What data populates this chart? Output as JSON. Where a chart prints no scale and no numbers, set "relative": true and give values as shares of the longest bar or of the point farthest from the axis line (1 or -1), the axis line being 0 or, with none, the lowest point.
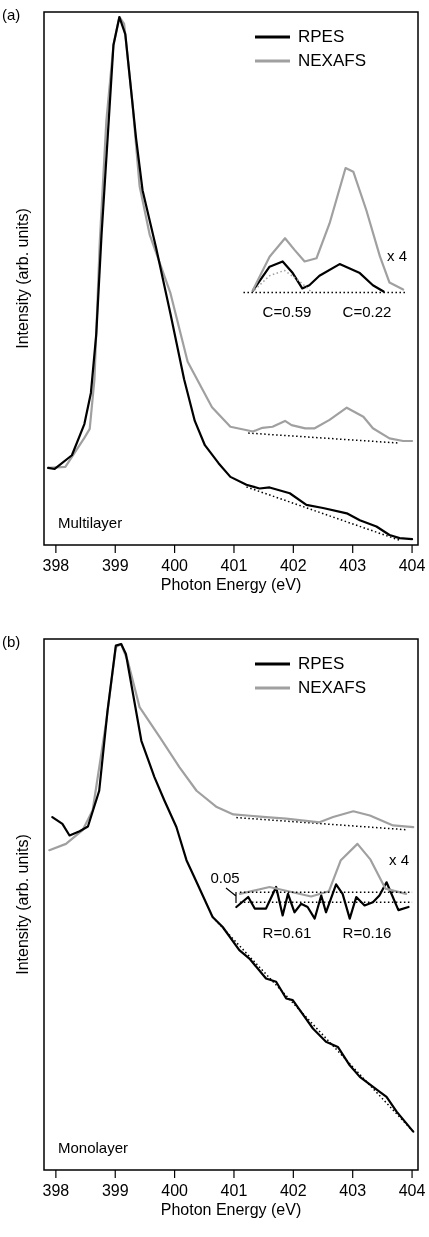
{
  "chart_data": [
    {
      "type": "line",
      "title": "(a)",
      "xlabel": "Photon Energy (eV)",
      "ylabel": "Intensity (arb. units)",
      "relative": true,
      "xlim": [
        397.8,
        404.1
      ],
      "xticks": [
        398,
        399,
        400,
        401,
        402,
        403,
        404
      ],
      "legend": "top right",
      "annotations": [
        "Multilayer",
        "x 4",
        "C=0.59",
        "C=0.22"
      ],
      "series": [
        {
          "name": "RPES",
          "color": "#000000",
          "x": [
            397.87,
            397.98,
            398.27,
            398.48,
            398.59,
            398.68,
            398.77,
            398.89,
            398.97,
            399.07,
            399.17,
            399.35,
            399.46,
            399.69,
            399.93,
            400.16,
            400.34,
            400.51,
            400.74,
            400.94,
            401.21,
            401.43,
            401.6,
            401.94,
            402.22,
            402.5,
            402.9,
            403.12,
            403.4,
            403.62,
            403.79,
            404.0
          ],
          "values": [
            0.146,
            0.144,
            0.17,
            0.229,
            0.288,
            0.399,
            0.589,
            0.803,
            0.947,
            1.0,
            0.967,
            0.771,
            0.672,
            0.562,
            0.438,
            0.314,
            0.235,
            0.189,
            0.155,
            0.129,
            0.114,
            0.107,
            0.109,
            0.098,
            0.076,
            0.07,
            0.06,
            0.047,
            0.035,
            0.019,
            0.013,
            0.011
          ]
        },
        {
          "name": "NEXAFS",
          "color": "#a0a0a0",
          "x": [
            397.87,
            398.16,
            398.48,
            398.57,
            398.65,
            398.74,
            398.85,
            398.97,
            399.07,
            399.15,
            399.29,
            399.41,
            399.58,
            399.93,
            400.22,
            400.63,
            400.94,
            401.32,
            401.48,
            401.65,
            401.86,
            401.97,
            402.2,
            402.36,
            402.61,
            402.9,
            403.18,
            403.34,
            403.62,
            403.85,
            404.0
          ],
          "values": [
            0.146,
            0.148,
            0.203,
            0.22,
            0.314,
            0.575,
            0.803,
            0.947,
            1.0,
            0.987,
            0.837,
            0.68,
            0.588,
            0.477,
            0.347,
            0.261,
            0.224,
            0.215,
            0.222,
            0.224,
            0.235,
            0.227,
            0.221,
            0.221,
            0.237,
            0.26,
            0.243,
            0.221,
            0.202,
            0.197,
            0.197
          ]
        },
        {
          "color": "#000000",
          "line_style": "dotted",
          "x": [
            401.21,
            403.79
          ],
          "values": [
            0.11,
            0.009
          ]
        },
        {
          "color": "#000000",
          "line_style": "dotted",
          "x": [
            401.24,
            403.79
          ],
          "values": [
            0.212,
            0.193
          ]
        },
        {
          "color": "#000000",
          "line_style": "dotted",
          "x": [
            401.16,
            403.88
          ],
          "values": [
            0.478,
            0.478
          ]
        },
        {
          "color": "#a0a0a0",
          "line_style": "dotted",
          "x": [
            401.3,
            401.6,
            401.85,
            402.1,
            402.3
          ],
          "values": [
            0.478,
            0.51,
            0.52,
            0.5,
            0.48
          ]
        },
        {
          "color": "#a0a0a0",
          "x": [
            401.32,
            401.6,
            401.86,
            402.02,
            402.19,
            402.39,
            402.61,
            402.88,
            403.01,
            403.23,
            403.46,
            403.62,
            403.85
          ],
          "values": [
            0.483,
            0.546,
            0.581,
            0.559,
            0.537,
            0.543,
            0.609,
            0.714,
            0.707,
            0.634,
            0.546,
            0.497,
            0.484
          ]
        },
        {
          "color": "#000000",
          "x": [
            401.32,
            401.6,
            401.82,
            401.99,
            402.15,
            402.27,
            402.44,
            402.78,
            403.12,
            403.34,
            403.52
          ],
          "values": [
            0.482,
            0.527,
            0.537,
            0.515,
            0.486,
            0.492,
            0.51,
            0.532,
            0.515,
            0.492,
            0.48
          ]
        }
      ]
    },
    {
      "type": "line",
      "title": "(b)",
      "xlabel": "Photon Energy (eV)",
      "ylabel": "Intensity (arb. units)",
      "relative": true,
      "xlim": [
        397.8,
        404.1
      ],
      "xticks": [
        398,
        399,
        400,
        401,
        402,
        403,
        404
      ],
      "legend": "top right",
      "annotations": [
        "Monolayer",
        "x 4",
        "0.05",
        "R=0.61",
        "R=0.16"
      ],
      "series": [
        {
          "name": "RPES",
          "color": "#000000",
          "x": [
            397.94,
            398.11,
            398.23,
            398.4,
            398.54,
            398.73,
            398.87,
            399.01,
            399.1,
            399.18,
            399.44,
            399.66,
            399.83,
            400.03,
            400.2,
            400.36,
            400.64,
            400.81,
            401.09,
            401.26,
            401.54,
            401.71,
            401.88,
            401.99,
            402.33,
            402.55,
            402.75,
            402.95,
            403.12,
            403.45,
            403.57,
            403.74,
            404.02
          ],
          "values": [
            0.671,
            0.658,
            0.636,
            0.644,
            0.653,
            0.721,
            0.873,
            0.997,
            1.0,
            0.981,
            0.816,
            0.747,
            0.702,
            0.652,
            0.589,
            0.55,
            0.481,
            0.462,
            0.418,
            0.402,
            0.364,
            0.358,
            0.326,
            0.323,
            0.269,
            0.244,
            0.234,
            0.199,
            0.177,
            0.149,
            0.139,
            0.111,
            0.073
          ]
        },
        {
          "name": "NEXAFS",
          "color": "#a0a0a0",
          "x": [
            397.89,
            398.17,
            398.45,
            398.62,
            398.85,
            399.01,
            399.1,
            399.21,
            399.41,
            399.75,
            400.08,
            400.37,
            400.71,
            400.99,
            401.54,
            401.88,
            402.44,
            402.67,
            403.01,
            403.29,
            403.68,
            404.02
          ],
          "values": [
            0.608,
            0.62,
            0.646,
            0.684,
            0.854,
            0.994,
            1.0,
            0.968,
            0.88,
            0.823,
            0.766,
            0.721,
            0.69,
            0.676,
            0.671,
            0.668,
            0.661,
            0.671,
            0.682,
            0.674,
            0.655,
            0.652
          ]
        },
        {
          "color": "#000000",
          "line_style": "dotted",
          "x": [
            401.04,
            403.89
          ],
          "values": [
            0.67,
            0.647
          ]
        },
        {
          "color": "#000000",
          "line_style": "dotted",
          "x": [
            400.64,
            404.02
          ],
          "values": [
            0.481,
            0.073
          ]
        },
        {
          "color": "#000000",
          "line_style": "dotted",
          "x": [
            401.1,
            404.0
          ],
          "values": [
            0.528,
            0.528
          ]
        },
        {
          "color": "#000000",
          "line_style": "dotted",
          "x": [
            401.1,
            404.0
          ],
          "values": [
            0.509,
            0.509
          ]
        },
        {
          "color": "#a0a0a0",
          "x": [
            401.1,
            401.6,
            402.3,
            402.6,
            402.8,
            403.08,
            403.3,
            403.55,
            403.9
          ],
          "values": [
            0.525,
            0.538,
            0.52,
            0.53,
            0.589,
            0.62,
            0.59,
            0.535,
            0.525
          ]
        },
        {
          "color": "#000000",
          "x": [
            401.04,
            401.24,
            401.35,
            401.54,
            401.71,
            401.82,
            401.91,
            402.02,
            402.13,
            402.24,
            402.36,
            402.47,
            402.55,
            402.72,
            402.83,
            402.95,
            403.06,
            403.2,
            403.34,
            403.45,
            403.57,
            403.77,
            403.94
          ],
          "values": [
            0.5,
            0.519,
            0.497,
            0.497,
            0.538,
            0.484,
            0.525,
            0.49,
            0.506,
            0.5,
            0.478,
            0.522,
            0.49,
            0.543,
            0.525,
            0.478,
            0.519,
            0.503,
            0.509,
            0.522,
            0.547,
            0.494,
            0.5
          ]
        }
      ]
    }
  ]
}
